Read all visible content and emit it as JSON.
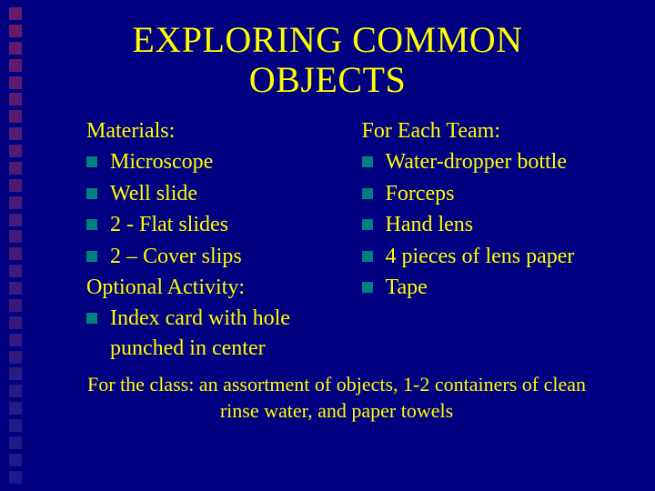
{
  "colors": {
    "background": "#000080",
    "text": "#ffff00",
    "bullet": "#008080",
    "sidebar_gradient_top": "#6a1a6a",
    "sidebar_gradient_bottom": "#1a1a8a"
  },
  "title_line1": "EXPLORING COMMON",
  "title_line2": "OBJECTS",
  "left": {
    "heading1": "Materials:",
    "items1": [
      "Microscope",
      "Well slide",
      "2 - Flat slides",
      "2 – Cover slips"
    ],
    "heading2": "Optional Activity:",
    "items2": [
      "Index card with hole punched in center"
    ]
  },
  "right": {
    "heading": "For Each Team:",
    "items": [
      "Water-dropper bottle",
      "Forceps",
      "Hand lens",
      "4 pieces of lens paper",
      "Tape"
    ]
  },
  "footer": "For the class: an assortment of objects, 1-2 containers of clean rinse water, and paper towels",
  "sidebar": {
    "square_count": 28
  }
}
